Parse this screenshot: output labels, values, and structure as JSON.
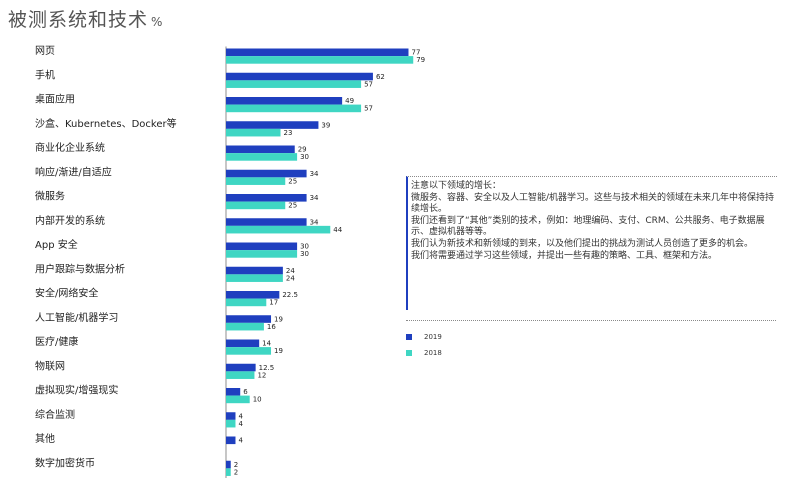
{
  "title": "被测系统和技术",
  "unit": "%",
  "colors": {
    "2019": "#1f3fbf",
    "2018": "#3fd6c3"
  },
  "chart_data": {
    "type": "bar",
    "orientation": "horizontal",
    "categories": [
      "网页",
      "手机",
      "桌面应用",
      "沙盒、Kubernetes、Docker等",
      "商业化企业系统",
      "响应/渐进/自适应",
      "微服务",
      "内部开发的系统",
      "App 安全",
      "用户跟踪与数据分析",
      "安全/网络安全",
      "人工智能/机器学习",
      "医疗/健康",
      "物联网",
      "虚拟现实/增强现实",
      "综合监测",
      "其他",
      "数字加密货币"
    ],
    "series": [
      {
        "name": "2019",
        "values": [
          77,
          62,
          49,
          39,
          29,
          34,
          34,
          34,
          30,
          24,
          22.5,
          19,
          14,
          12.5,
          6,
          4,
          4,
          2
        ]
      },
      {
        "name": "2018",
        "values": [
          79,
          57,
          57,
          23,
          30,
          25,
          25,
          44,
          30,
          24,
          17,
          16,
          19,
          12,
          10,
          4,
          null,
          2
        ]
      }
    ],
    "value_labels": [
      [
        "77",
        "62",
        "49",
        "39",
        "29",
        "34",
        "34",
        "34",
        "30",
        "24",
        "22.5",
        "19",
        "14",
        "12.5",
        "6",
        "4",
        "4",
        "2"
      ],
      [
        "79",
        "57",
        "57",
        "23",
        "30",
        "25",
        "25",
        "44",
        "30",
        "24",
        "17",
        "16",
        "19",
        "12",
        "10",
        "4",
        "",
        "2"
      ]
    ],
    "xlim": [
      0,
      100
    ],
    "grid": false,
    "legend_position": "right"
  },
  "note": {
    "lines": [
      "注意以下领域的增长：",
      "微服务、容器、安全以及人工智能/机器学习。这些与技术相关的领域在未来几年中将保持持续增长。",
      "我们还看到了“其他”类别的技术，例如：地理编码、支付、CRM、公共服务、电子数据展示、虚拟机器等等。",
      "我们认为新技术和新领域的到来，以及他们提出的挑战为测试人员创造了更多的机会。",
      "我们将需要通过学习这些领域，并提出一些有趣的策略、工具、框架和方法。"
    ]
  },
  "legend": [
    {
      "label": "2019",
      "color": "#1f3fbf"
    },
    {
      "label": "2018",
      "color": "#3fd6c3"
    }
  ]
}
